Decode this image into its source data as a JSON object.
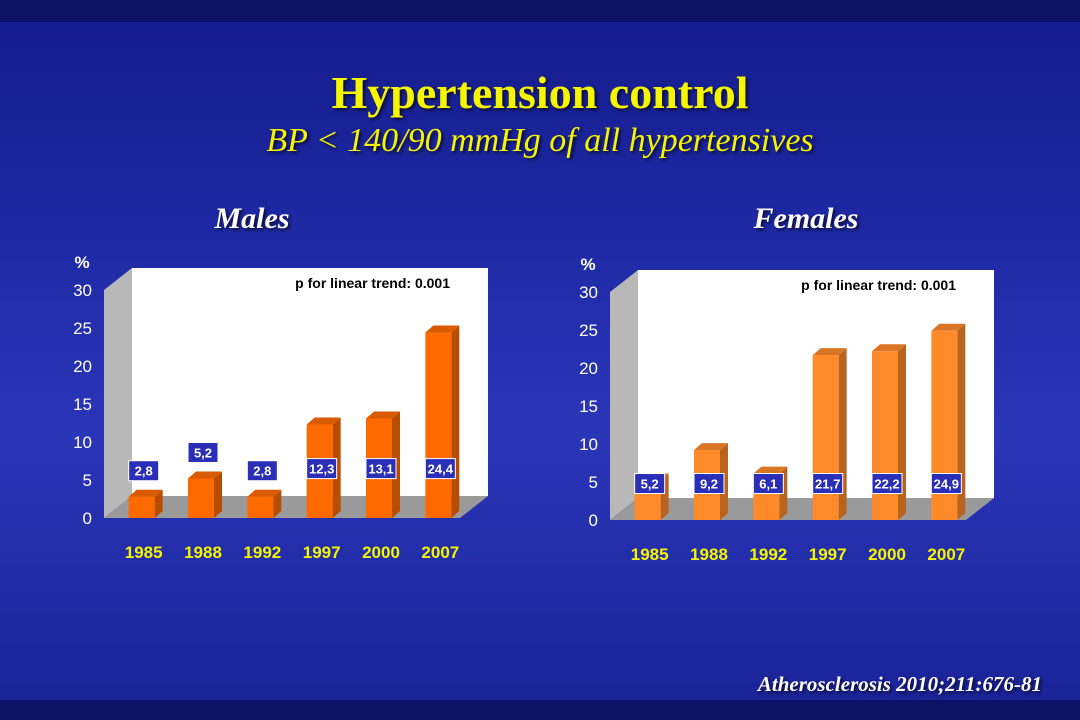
{
  "slide": {
    "title": "Hypertension control",
    "subtitle": "BP < 140/90 mmHg of all hypertensives",
    "citation": "Atherosclerosis 2010;211:676-81"
  },
  "colors": {
    "bar_front": "#ff6a00",
    "bar_front_females": "#ff8a2a",
    "label_box": "#2b2fb8",
    "axis_text": "#ffffff",
    "category_text": "#f5f500",
    "title_text": "#f5f500"
  },
  "chart_data": [
    {
      "type": "bar",
      "title": "Males",
      "ylabel": "%",
      "annotation": "p for linear trend: 0.001",
      "ylim": [
        0,
        30
      ],
      "yticks": [
        0,
        5,
        10,
        15,
        20,
        25,
        30
      ],
      "categories": [
        "1985",
        "1988",
        "1992",
        "1997",
        "2000",
        "2007"
      ],
      "values": [
        2.8,
        5.2,
        2.8,
        12.3,
        13.1,
        24.4
      ],
      "value_labels": [
        "2,8",
        "5,2",
        "2,8",
        "12,3",
        "13,1",
        "24,4"
      ]
    },
    {
      "type": "bar",
      "title": "Females",
      "ylabel": "%",
      "annotation": "p for linear trend: 0.001",
      "ylim": [
        0,
        30
      ],
      "yticks": [
        0,
        5,
        10,
        15,
        20,
        25,
        30
      ],
      "categories": [
        "1985",
        "1988",
        "1992",
        "1997",
        "2000",
        "2007"
      ],
      "values": [
        5.2,
        9.2,
        6.1,
        21.7,
        22.2,
        24.9
      ],
      "value_labels": [
        "5,2",
        "9,2",
        "6,1",
        "21,7",
        "22,2",
        "24,9"
      ]
    }
  ]
}
